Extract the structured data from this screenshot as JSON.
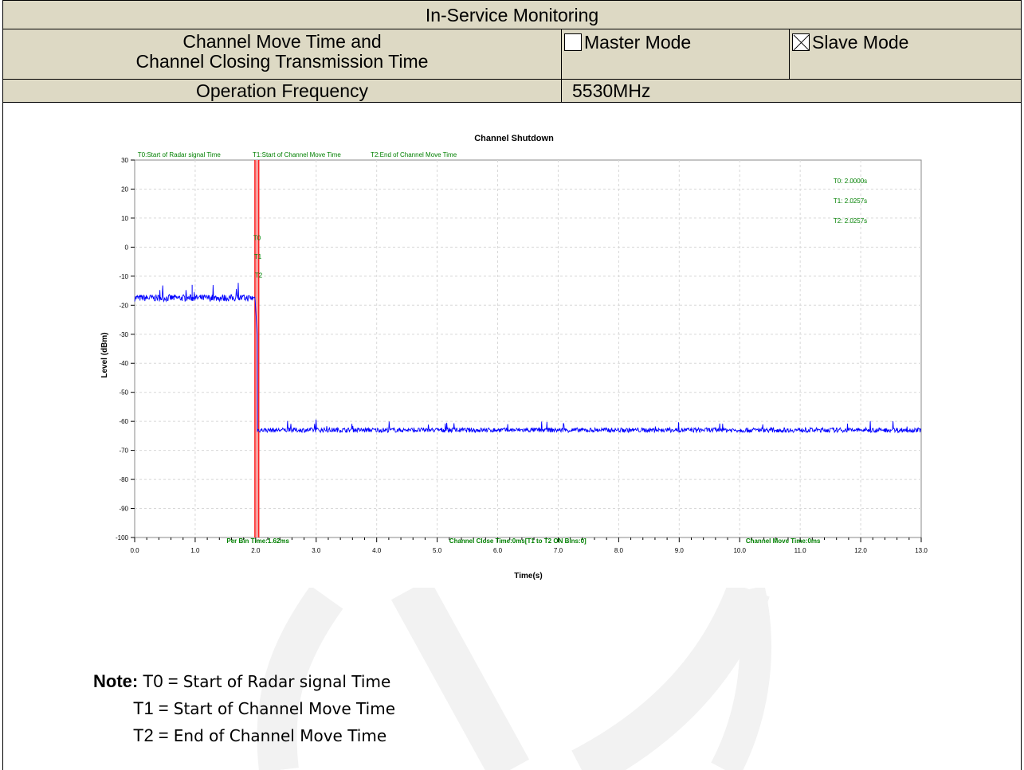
{
  "header": {
    "title": "In-Service Monitoring",
    "test_name_line1": "Channel Move Time and",
    "test_name_line2": "Channel Closing Transmission Time",
    "master_mode_label": "Master Mode",
    "master_mode_checked": false,
    "slave_mode_label": "Slave Mode",
    "slave_mode_checked": true,
    "freq_label": "Operation Frequency",
    "freq_value": "5530MHz"
  },
  "chart_data": {
    "type": "line",
    "title": "Channel Shutdown",
    "xlabel": "Time(s)",
    "ylabel": "Level (dBm)",
    "xlim": [
      0,
      13
    ],
    "ylim": [
      -100,
      30
    ],
    "x_ticks": [
      "0.0",
      "1.0",
      "2.0",
      "3.0",
      "4.0",
      "5.0",
      "6.0",
      "7.0",
      "8.0",
      "9.0",
      "10.0",
      "11.0",
      "12.0",
      "13.0"
    ],
    "y_ticks": [
      "30",
      "20",
      "10",
      "0",
      "-10",
      "-20",
      "-30",
      "-40",
      "-50",
      "-60",
      "-70",
      "-80",
      "-90",
      "-100"
    ],
    "grid": true,
    "series": [
      {
        "color": "#0000ff",
        "x": [
          0,
          2.0,
          2.0257,
          2.03,
          13.0
        ],
        "y": [
          -17.5,
          -17.5,
          -30,
          -63,
          -63
        ]
      }
    ],
    "markers": [
      {
        "label": "T0",
        "x": 2.0,
        "value_text": "T0: 2.0000s"
      },
      {
        "label": "T1",
        "x": 2.0257,
        "value_text": "T1: 2.0257s"
      },
      {
        "label": "T2",
        "x": 2.0257,
        "value_text": "T2: 2.0257s"
      }
    ],
    "top_labels": [
      "T0:Start of Radar signal Time",
      "T1:Start of Channel Move Time",
      "T2:End of Channel Move Time"
    ],
    "bottom_labels": [
      "Per Bin Time:1.62ms",
      "Channel Close Time:0ms[T1 to T2 ON Bins:0]",
      "Channel Move Time:0ms"
    ],
    "marker_color": "#ff0000",
    "annotation_color": "#008000"
  },
  "note": {
    "label": "Note:",
    "t0_key": "T0 = ",
    "t0_desc": "Start of Radar signal Time",
    "t1_key": "T1 = ",
    "t1_desc": "Start of Channel Move Time",
    "t2_key": "T2 = ",
    "t2_desc": "End of Channel Move Time"
  }
}
